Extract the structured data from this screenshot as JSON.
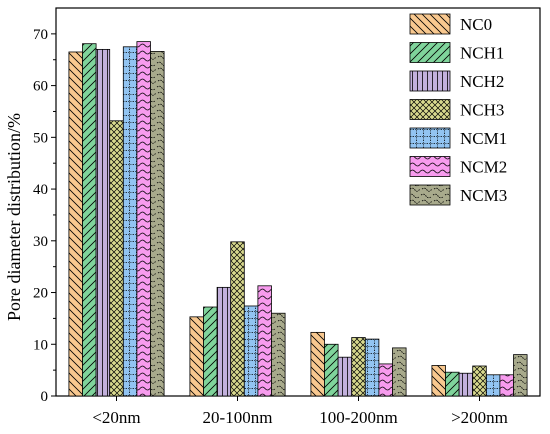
{
  "chart_data": {
    "type": "bar",
    "ylabel": "Pore diameter distribution/%",
    "xlabel": "",
    "ylim": [
      0,
      75
    ],
    "yticks": [
      0,
      10,
      20,
      30,
      40,
      50,
      60,
      70
    ],
    "categories": [
      "<20nm",
      "20-100nm",
      "100-200nm",
      ">200nm"
    ],
    "legend_position": "top-right",
    "series": [
      {
        "name": "NC0",
        "values": [
          66.5,
          15.3,
          12.3,
          5.9
        ],
        "color": "#F8C88F",
        "pattern": "diagonal-back"
      },
      {
        "name": "NCH1",
        "values": [
          68.1,
          17.2,
          10.0,
          4.6
        ],
        "color": "#7FD49B",
        "pattern": "diagonal-forward"
      },
      {
        "name": "NCH2",
        "values": [
          67.0,
          21.0,
          7.5,
          4.4
        ],
        "color": "#C2B0DC",
        "pattern": "vertical"
      },
      {
        "name": "NCH3",
        "values": [
          53.2,
          29.8,
          11.3,
          5.8
        ],
        "color": "#D8D98E",
        "pattern": "crosshatch"
      },
      {
        "name": "NCM1",
        "values": [
          67.5,
          17.4,
          11.0,
          4.1
        ],
        "color": "#92C4F2",
        "pattern": "dotted-grid"
      },
      {
        "name": "NCM2",
        "values": [
          68.5,
          21.3,
          6.2,
          4.1
        ],
        "color": "#F79BEE",
        "pattern": "wave"
      },
      {
        "name": "NCM3",
        "values": [
          66.6,
          16.0,
          9.3,
          8.0
        ],
        "color": "#A8AA8C",
        "pattern": "scribble"
      }
    ]
  }
}
